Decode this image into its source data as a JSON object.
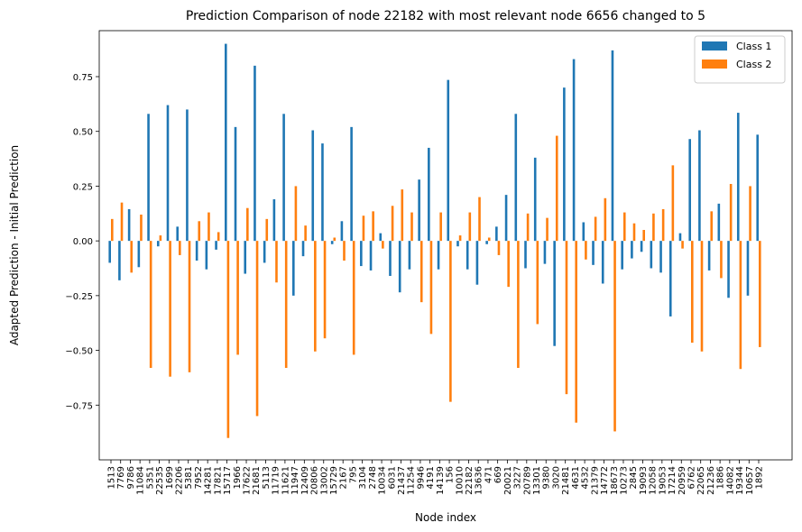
{
  "chart_data": {
    "type": "bar",
    "title": "Prediction Comparison of node 22182 with most relevant node 6656 changed to 5",
    "xlabel": "Node index",
    "ylabel": "Adapted Prediction - Initial Prediction",
    "ylim": [
      -1.0,
      0.96
    ],
    "yticks": [
      -0.75,
      -0.5,
      -0.25,
      0.0,
      0.25,
      0.5,
      0.75
    ],
    "ytick_labels": [
      "−0.75",
      "−0.50",
      "−0.25",
      "0.00",
      "0.25",
      "0.50",
      "0.75"
    ],
    "grid": false,
    "legend_position": "top-right",
    "colors": {
      "class1": "#1f77b4",
      "class2": "#ff7f0e"
    },
    "categories": [
      "1513",
      "7769",
      "9786",
      "11084",
      "5351",
      "22535",
      "1699",
      "22206",
      "5381",
      "7952",
      "14281",
      "17821",
      "15717",
      "1966",
      "17622",
      "21681",
      "5113",
      "11719",
      "11621",
      "11947",
      "12409",
      "20806",
      "13002",
      "15729",
      "2167",
      "795",
      "3104",
      "2748",
      "10034",
      "6031",
      "21437",
      "11254",
      "9946",
      "4191",
      "14139",
      "156",
      "10010",
      "22182",
      "13636",
      "471",
      "669",
      "20021",
      "3227",
      "20789",
      "13301",
      "9380",
      "3020",
      "21481",
      "4631",
      "4532",
      "21379",
      "14772",
      "18673",
      "10273",
      "2845",
      "19093",
      "12058",
      "19053",
      "17214",
      "20959",
      "6762",
      "22065",
      "21236",
      "1886",
      "14082",
      "19344",
      "10657",
      "1892"
    ],
    "series": [
      {
        "name": "Class 1",
        "values": [
          -0.1,
          -0.18,
          0.145,
          -0.12,
          0.58,
          -0.025,
          0.62,
          0.065,
          0.6,
          -0.09,
          -0.13,
          -0.04,
          0.9,
          0.52,
          -0.15,
          0.8,
          -0.1,
          0.19,
          0.58,
          -0.25,
          -0.07,
          0.505,
          0.445,
          -0.015,
          0.09,
          0.52,
          -0.115,
          -0.135,
          0.035,
          -0.16,
          -0.235,
          -0.13,
          0.28,
          0.425,
          -0.13,
          0.735,
          -0.025,
          -0.13,
          -0.2,
          -0.015,
          0.065,
          0.21,
          0.58,
          -0.125,
          0.38,
          -0.105,
          -0.48,
          0.7,
          0.83,
          0.085,
          -0.11,
          -0.195,
          0.87,
          -0.13,
          -0.08,
          -0.05,
          -0.125,
          -0.145,
          -0.345,
          0.035,
          0.465,
          0.505,
          -0.135,
          0.17,
          -0.26,
          0.585,
          -0.25,
          0.485
        ]
      },
      {
        "name": "Class 2",
        "values": [
          0.1,
          0.175,
          -0.145,
          0.12,
          -0.58,
          0.025,
          -0.62,
          -0.065,
          -0.6,
          0.09,
          0.13,
          0.04,
          -0.9,
          -0.52,
          0.15,
          -0.8,
          0.1,
          -0.19,
          -0.58,
          0.25,
          0.07,
          -0.505,
          -0.445,
          0.015,
          -0.09,
          -0.52,
          0.115,
          0.135,
          -0.035,
          0.16,
          0.235,
          0.13,
          -0.28,
          -0.425,
          0.13,
          -0.735,
          0.025,
          0.13,
          0.2,
          0.015,
          -0.065,
          -0.21,
          -0.58,
          0.125,
          -0.38,
          0.105,
          0.48,
          -0.7,
          -0.83,
          -0.085,
          0.11,
          0.195,
          -0.87,
          0.13,
          0.08,
          0.05,
          0.125,
          0.145,
          0.345,
          -0.035,
          -0.465,
          -0.505,
          0.135,
          -0.17,
          0.26,
          -0.585,
          0.25,
          -0.485
        ]
      }
    ]
  }
}
